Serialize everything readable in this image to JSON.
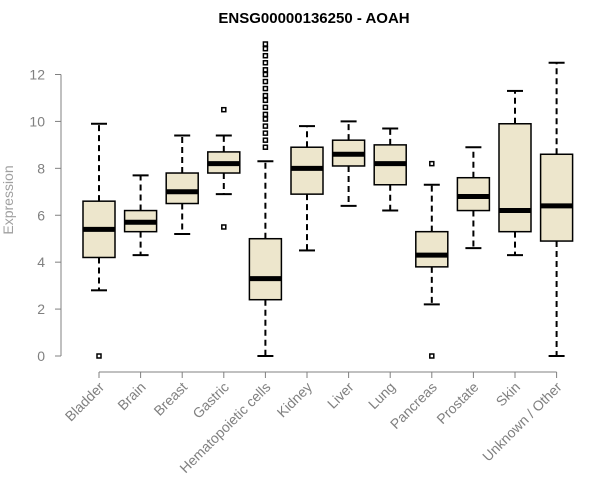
{
  "chart_data": {
    "type": "boxplot",
    "title": "ENSG00000136250 - AOAH",
    "xlabel": "",
    "ylabel": "Expression",
    "ylim": [
      0,
      13.3
    ],
    "yticks": [
      0,
      2,
      4,
      6,
      8,
      10,
      12
    ],
    "categories": [
      "Bladder",
      "Brain",
      "Breast",
      "Gastric",
      "Hematopoietic cells",
      "Kidney",
      "Liver",
      "Lung",
      "Pancreas",
      "Prostate",
      "Skin",
      "Unknown / Other"
    ],
    "boxes": [
      {
        "name": "Bladder",
        "min": 2.8,
        "q1": 4.2,
        "median": 5.4,
        "q3": 6.6,
        "max": 9.9,
        "outliers": [
          0.0
        ]
      },
      {
        "name": "Brain",
        "min": 4.3,
        "q1": 5.3,
        "median": 5.7,
        "q3": 6.2,
        "max": 7.7,
        "outliers": []
      },
      {
        "name": "Breast",
        "min": 5.2,
        "q1": 6.5,
        "median": 7.0,
        "q3": 7.8,
        "max": 9.4,
        "outliers": []
      },
      {
        "name": "Gastric",
        "min": 6.9,
        "q1": 7.8,
        "median": 8.2,
        "q3": 8.7,
        "max": 9.4,
        "outliers": [
          10.5,
          5.5
        ]
      },
      {
        "name": "Hematopoietic cells",
        "min": 0.0,
        "q1": 2.4,
        "median": 3.3,
        "q3": 5.0,
        "max": 8.3,
        "outliers": [
          8.9,
          9.2,
          9.5,
          9.8,
          10.1,
          10.3,
          10.6,
          10.9,
          11.1,
          11.4,
          11.7,
          12.0,
          12.2,
          12.5,
          12.8,
          13.1,
          13.3
        ]
      },
      {
        "name": "Kidney",
        "min": 4.5,
        "q1": 6.9,
        "median": 8.0,
        "q3": 8.9,
        "max": 9.8,
        "outliers": []
      },
      {
        "name": "Liver",
        "min": 6.4,
        "q1": 8.1,
        "median": 8.6,
        "q3": 9.2,
        "max": 10.0,
        "outliers": []
      },
      {
        "name": "Lung",
        "min": 6.2,
        "q1": 7.3,
        "median": 8.2,
        "q3": 9.0,
        "max": 9.7,
        "outliers": []
      },
      {
        "name": "Pancreas",
        "min": 2.2,
        "q1": 3.8,
        "median": 4.3,
        "q3": 5.3,
        "max": 7.3,
        "outliers": [
          8.2,
          0.0
        ]
      },
      {
        "name": "Prostate",
        "min": 4.6,
        "q1": 6.2,
        "median": 6.8,
        "q3": 7.6,
        "max": 8.9,
        "outliers": []
      },
      {
        "name": "Skin",
        "min": 4.3,
        "q1": 5.3,
        "median": 6.2,
        "q3": 9.9,
        "max": 11.3,
        "outliers": []
      },
      {
        "name": "Unknown / Other",
        "min": 0.0,
        "q1": 4.9,
        "median": 6.4,
        "q3": 8.6,
        "max": 12.5,
        "outliers": []
      }
    ],
    "colors": {
      "box_fill": "#ede6cc",
      "box_stroke": "#000000",
      "axis": "#808080",
      "ylabel": "#a0a0a0"
    }
  }
}
